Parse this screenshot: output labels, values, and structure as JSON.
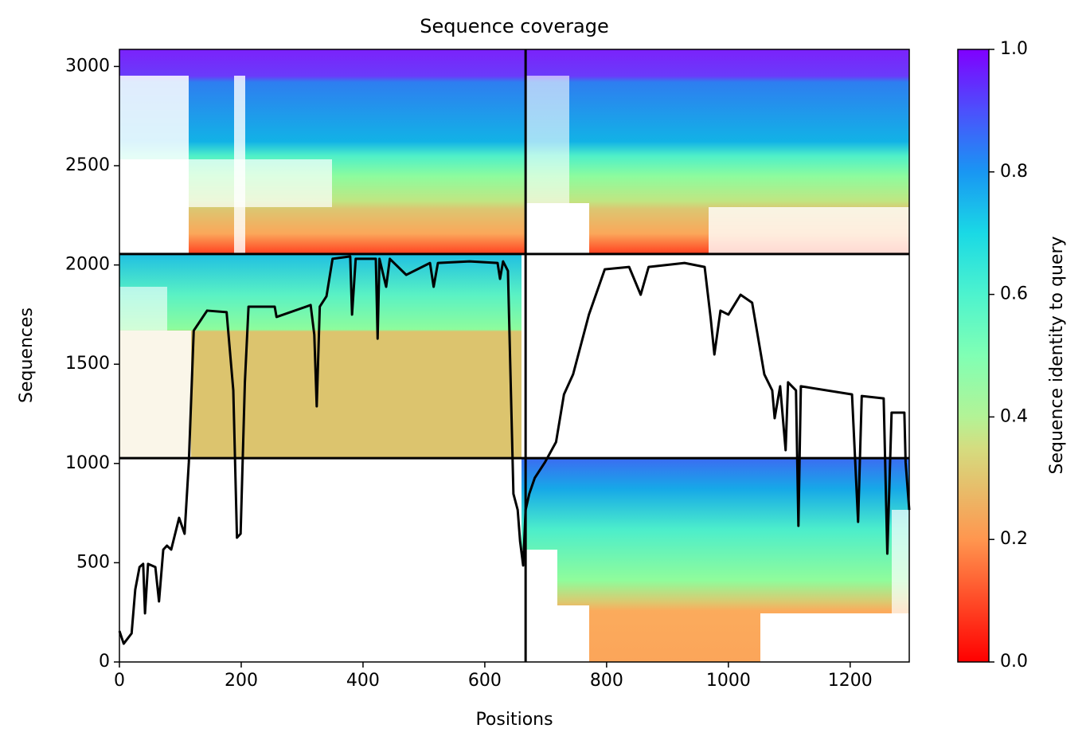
{
  "chart_data": {
    "type": "line",
    "title": "Sequence coverage",
    "xlabel": "Positions",
    "ylabel": "Sequences",
    "xlim": [
      0,
      1297
    ],
    "xticks": [
      0,
      200,
      400,
      600,
      800,
      1000,
      1200
    ],
    "ylim": [
      0,
      3086
    ],
    "yticks": [
      0,
      500,
      1000,
      1500,
      2000,
      2500,
      3000
    ],
    "boundaries": {
      "x": [
        667
      ],
      "y": [
        1027,
        2055
      ]
    },
    "series": [
      {
        "name": "coverage",
        "color": "#000000",
        "x": [
          0,
          7,
          20,
          26,
          33,
          39,
          42,
          47,
          59,
          65,
          72,
          78,
          85,
          98,
          107,
          114,
          122,
          144,
          176,
          187,
          193,
          199,
          206,
          212,
          255,
          258,
          314,
          320,
          324,
          329,
          340,
          350,
          379,
          382,
          388,
          421,
          424,
          427,
          438,
          444,
          471,
          510,
          516,
          523,
          575,
          621,
          625,
          630,
          638,
          647,
          654,
          658,
          663,
          667,
          673,
          682,
          699,
          717,
          730,
          745,
          771,
          797,
          837,
          856,
          869,
          928,
          961,
          971,
          977,
          987,
          1000,
          1020,
          1039,
          1059,
          1072,
          1076,
          1085,
          1094,
          1098,
          1111,
          1115,
          1119,
          1203,
          1213,
          1219,
          1255,
          1261,
          1268,
          1289,
          1291,
          1297
        ],
        "values": [
          156,
          92,
          144,
          365,
          478,
          494,
          245,
          494,
          478,
          305,
          566,
          586,
          566,
          726,
          646,
          1007,
          1669,
          1770,
          1762,
          1368,
          626,
          646,
          1408,
          1790,
          1790,
          1738,
          1798,
          1649,
          1288,
          1790,
          1842,
          2031,
          2043,
          1750,
          2031,
          2031,
          1629,
          2031,
          1890,
          2031,
          1950,
          2010,
          1890,
          2010,
          2018,
          2010,
          1930,
          2018,
          1970,
          847,
          766,
          606,
          486,
          766,
          847,
          927,
          1007,
          1108,
          1348,
          1449,
          1750,
          1978,
          1990,
          1850,
          1990,
          2010,
          1990,
          1730,
          1549,
          1770,
          1750,
          1850,
          1810,
          1449,
          1368,
          1228,
          1389,
          1067,
          1409,
          1368,
          686,
          1389,
          1348,
          706,
          1340,
          1328,
          546,
          1256,
          1256,
          1007,
          766
        ]
      }
    ],
    "colorbar": {
      "label": "Sequence identity to query",
      "colormap": "rainbow_r",
      "lim": [
        0,
        1
      ],
      "ticks": [
        {
          "value": 0,
          "label": "0.0"
        },
        0.2,
        0.4,
        0.6,
        0.8,
        {
          "value": 1,
          "label": "1.0"
        }
      ]
    }
  }
}
